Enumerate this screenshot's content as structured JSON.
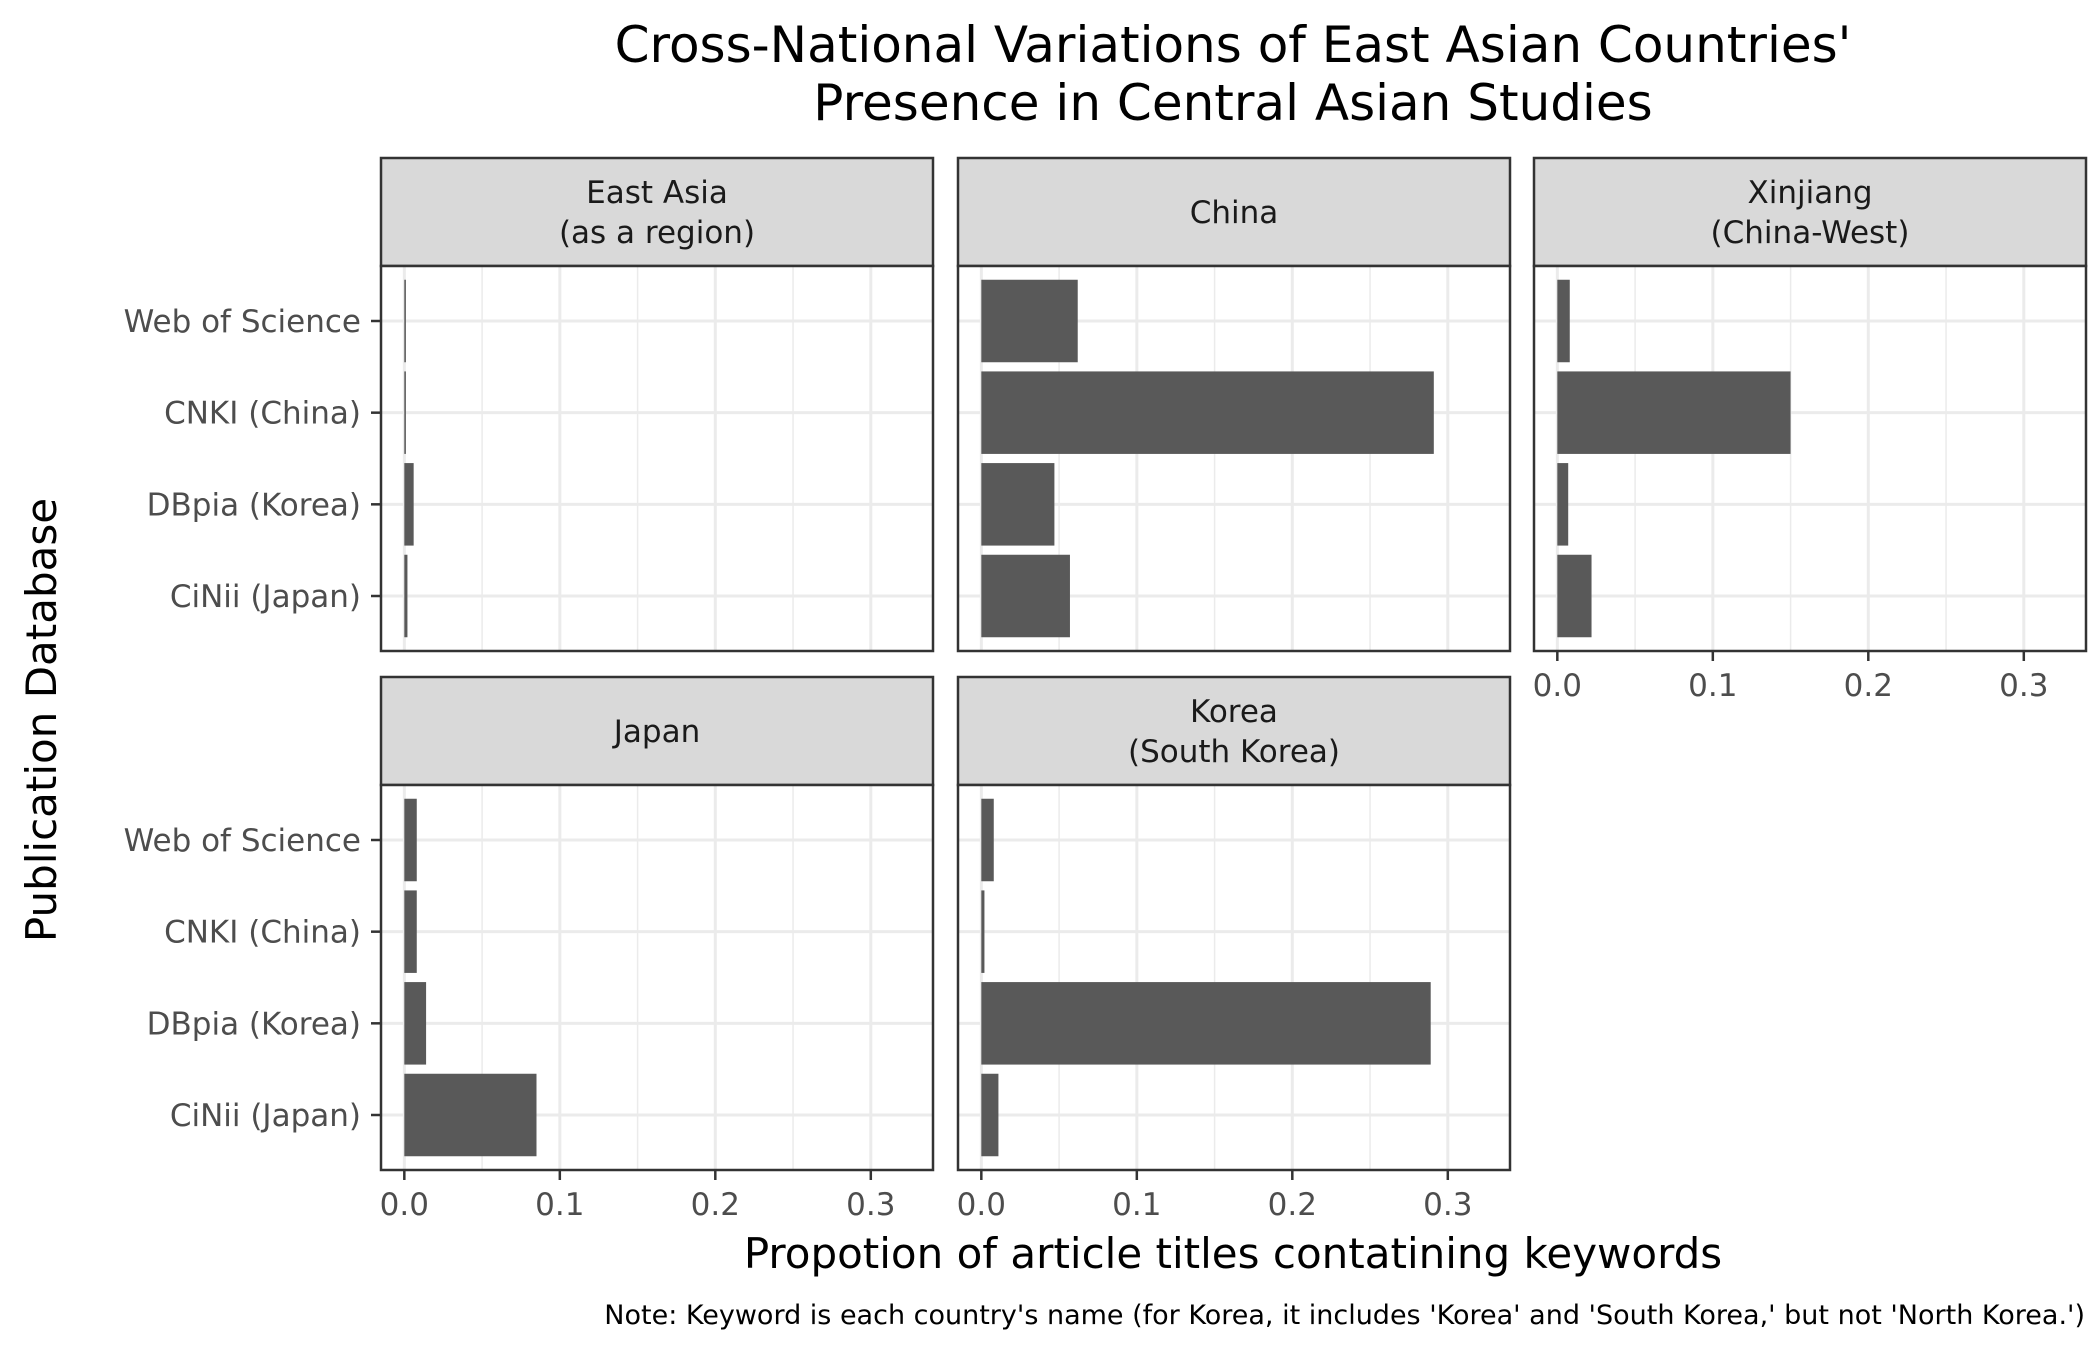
{
  "chart_data": {
    "type": "bar",
    "orientation": "horizontal",
    "title": [
      "Cross-National Variations of East Asian Countries'",
      "Presence in Central Asian Studies"
    ],
    "xlabel": "Propotion of article titles contatining keywords",
    "ylabel": "Publication Database",
    "caption": "Note: Keyword is each country's name (for Korea, it includes 'Korea' and 'South Korea,' but not 'North Korea.')",
    "categories": [
      "Web of Science",
      "CNKI (China)",
      "DBpia (Korea)",
      "CiNii (Japan)"
    ],
    "xlim": [
      -0.015,
      0.34
    ],
    "x_ticks": [
      0.0,
      0.1,
      0.2,
      0.3
    ],
    "x_tick_labels": [
      "0.0",
      "0.1",
      "0.2",
      "0.3"
    ],
    "grid": true,
    "facets": [
      {
        "label": [
          "East Asia",
          "(as a region)"
        ],
        "values": [
          0.001,
          0.001,
          0.006,
          0.002
        ]
      },
      {
        "label": [
          "China"
        ],
        "values": [
          0.062,
          0.291,
          0.047,
          0.057
        ]
      },
      {
        "label": [
          "Xinjiang",
          "(China-West)"
        ],
        "values": [
          0.008,
          0.15,
          0.007,
          0.022
        ]
      },
      {
        "label": [
          "Japan"
        ],
        "values": [
          0.008,
          0.008,
          0.014,
          0.085
        ]
      },
      {
        "label": [
          "Korea",
          "(South Korea)"
        ],
        "values": [
          0.008,
          0.002,
          0.289,
          0.011
        ]
      }
    ]
  }
}
